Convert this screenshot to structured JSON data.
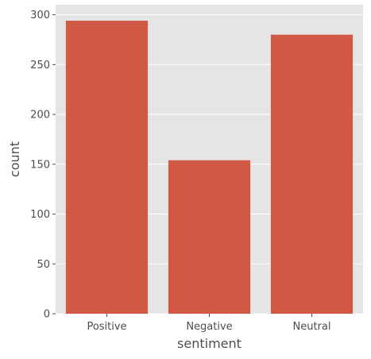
{
  "chart_data": {
    "type": "bar",
    "categories": [
      "Positive",
      "Negative",
      "Neutral"
    ],
    "values": [
      294,
      154,
      280
    ],
    "xlabel": "sentiment",
    "ylabel": "count",
    "ylim": [
      0,
      310
    ],
    "yticks": [
      0,
      50,
      100,
      150,
      200,
      250,
      300
    ],
    "grid": true,
    "colors": {
      "bar": "#d05a45",
      "plot_background": "#e5e5e5",
      "grid": "#ffffff",
      "text": "#4d4d4d"
    }
  }
}
